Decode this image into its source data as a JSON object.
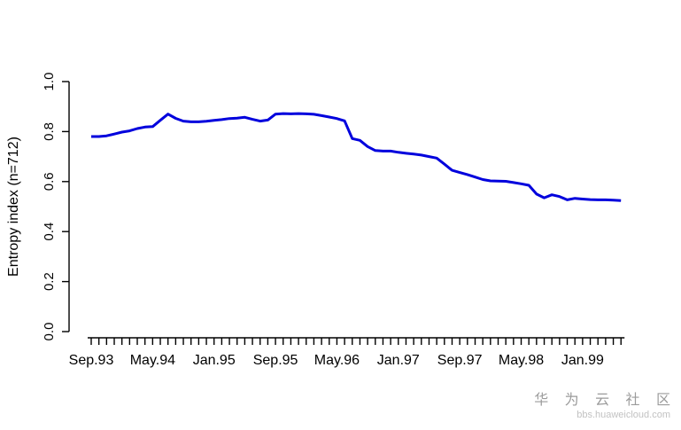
{
  "chart_data": {
    "type": "line",
    "title": "",
    "xlabel": "",
    "ylabel": "Entropy index (n=712)",
    "ylim": [
      0.0,
      1.0
    ],
    "y_ticks": [
      "0.0",
      "0.2",
      "0.4",
      "0.6",
      "0.8",
      "1.0"
    ],
    "x_tick_labels": [
      "Sep.93",
      "May.94",
      "Jan.95",
      "Sep.95",
      "May.96",
      "Jan.97",
      "Sep.97",
      "May.98",
      "Jan.99"
    ],
    "x_label_every": 8,
    "grid": false,
    "legend_position": "none",
    "axis_color": "#000000",
    "x": [
      "Sep.93",
      "Oct.93",
      "Nov.93",
      "Dec.93",
      "Jan.94",
      "Feb.94",
      "Mar.94",
      "Apr.94",
      "May.94",
      "Jun.94",
      "Jul.94",
      "Aug.94",
      "Sep.94",
      "Oct.94",
      "Nov.94",
      "Dec.94",
      "Jan.95",
      "Feb.95",
      "Mar.95",
      "Apr.95",
      "May.95",
      "Jun.95",
      "Jul.95",
      "Aug.95",
      "Sep.95",
      "Oct.95",
      "Nov.95",
      "Dec.95",
      "Jan.96",
      "Feb.96",
      "Mar.96",
      "Apr.96",
      "May.96",
      "Jun.96",
      "Jul.96",
      "Aug.96",
      "Sep.96",
      "Oct.96",
      "Nov.96",
      "Dec.96",
      "Jan.97",
      "Feb.97",
      "Mar.97",
      "Apr.97",
      "May.97",
      "Jun.97",
      "Jul.97",
      "Aug.97",
      "Sep.97",
      "Oct.97",
      "Nov.97",
      "Dec.97",
      "Jan.98",
      "Feb.98",
      "Mar.98",
      "Apr.98",
      "May.98",
      "Jun.98",
      "Jul.98",
      "Aug.98",
      "Sep.98",
      "Oct.98",
      "Nov.98",
      "Dec.98",
      "Jan.99",
      "Feb.99",
      "Mar.99",
      "Apr.99",
      "May.99",
      "Jun.99"
    ],
    "series": [
      {
        "name": "Entropy index (n=712)",
        "color": "#0000dd",
        "values": [
          0.78,
          0.78,
          0.783,
          0.79,
          0.798,
          0.803,
          0.812,
          0.818,
          0.82,
          0.845,
          0.87,
          0.853,
          0.842,
          0.839,
          0.839,
          0.841,
          0.845,
          0.848,
          0.852,
          0.854,
          0.857,
          0.849,
          0.842,
          0.846,
          0.87,
          0.872,
          0.871,
          0.872,
          0.871,
          0.869,
          0.864,
          0.858,
          0.852,
          0.843,
          0.772,
          0.765,
          0.74,
          0.724,
          0.722,
          0.722,
          0.717,
          0.713,
          0.71,
          0.706,
          0.7,
          0.694,
          0.67,
          0.645,
          0.636,
          0.628,
          0.618,
          0.608,
          0.603,
          0.602,
          0.601,
          0.596,
          0.591,
          0.585,
          0.55,
          0.535,
          0.547,
          0.54,
          0.527,
          0.533,
          0.53,
          0.528,
          0.527,
          0.527,
          0.526,
          0.524
        ]
      }
    ]
  },
  "watermark": {
    "title": "华 为 云 社 区",
    "url": "bbs.huaweicloud.com"
  }
}
